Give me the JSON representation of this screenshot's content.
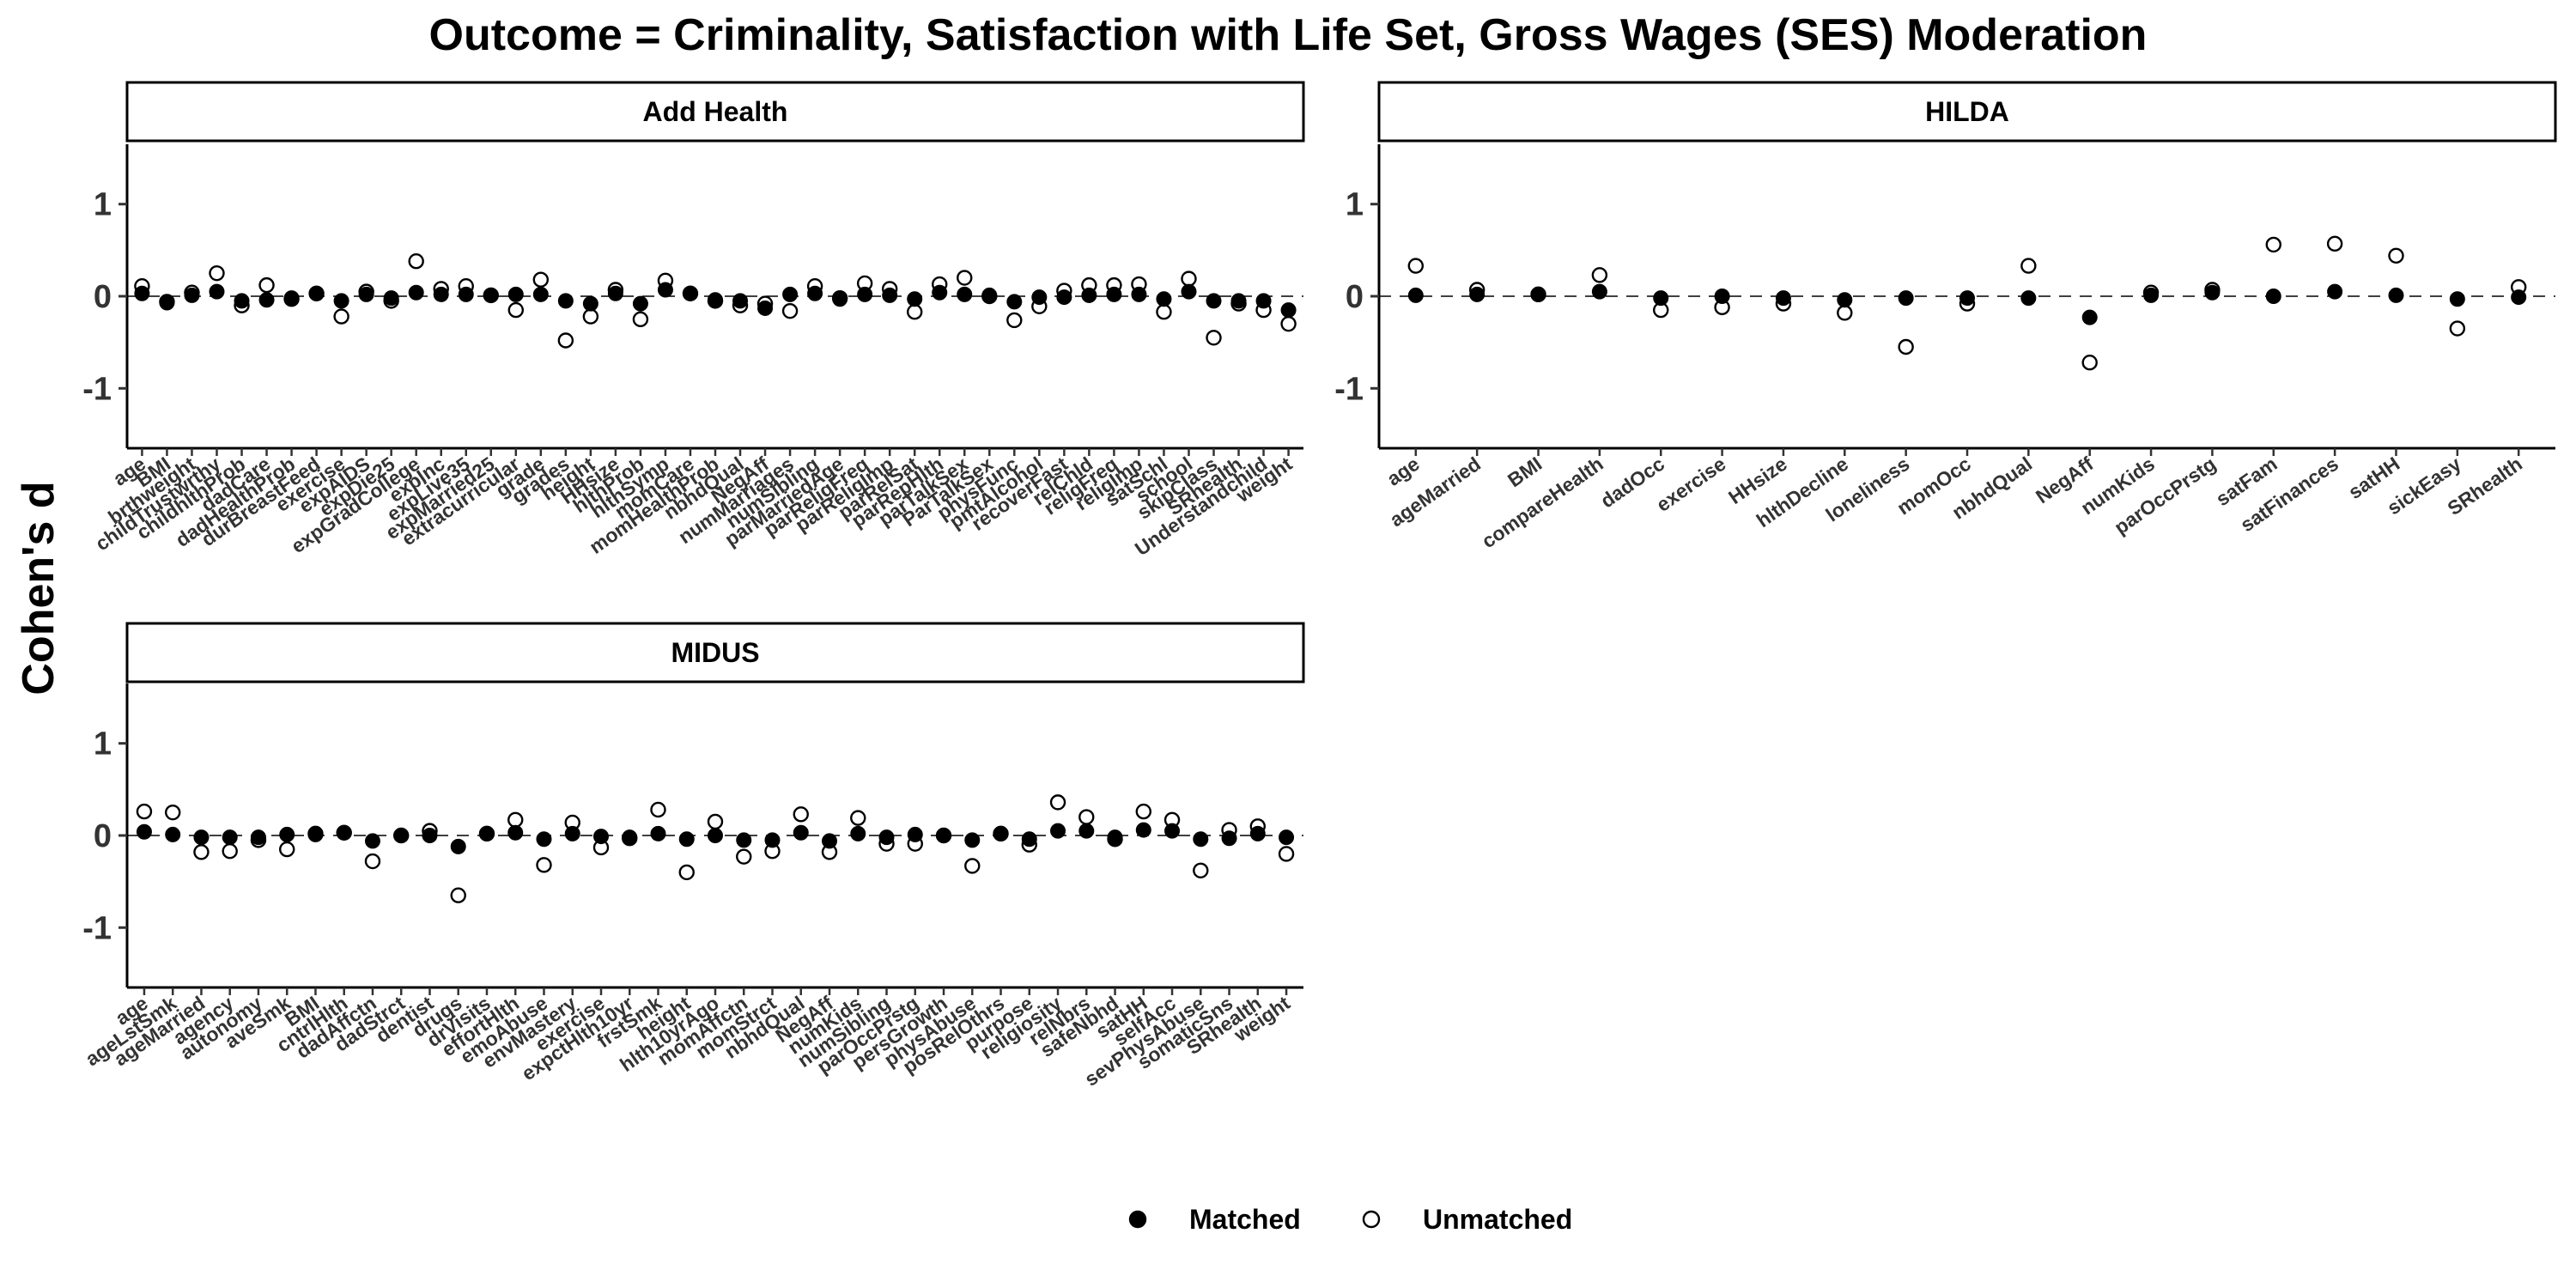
{
  "chart_data": {
    "type": "scatter",
    "title": "Outcome = Criminality, Satisfaction with Life Set, Gross Wages (SES) Moderation",
    "ylabel": "Cohen's d",
    "ylim": [
      -1.65,
      1.65
    ],
    "yticks": [
      -1,
      0,
      1
    ],
    "reference_line": 0,
    "grid": false,
    "legend_position": "bottom",
    "legend": [
      {
        "name": "Matched",
        "marker": "filled-circle"
      },
      {
        "name": "Unmatched",
        "marker": "open-circle"
      }
    ],
    "panels": [
      {
        "name": "Add Health",
        "categories": [
          "age",
          "BMI",
          "brthweight",
          "childTrustwrthy",
          "childhlthProb",
          "dadCare",
          "dadHealthProb",
          "durBreastFeed",
          "exercise",
          "expAIDS",
          "expDie25",
          "expGradCollege",
          "expInc",
          "expLive35",
          "expMarried25",
          "extracurricular",
          "grade",
          "grades",
          "height",
          "HHsize",
          "hlthProb",
          "hlthSymp",
          "momCare",
          "momHealthProb",
          "nbhdQual",
          "NegAff",
          "numMarriages",
          "numSibling",
          "parMarriedAge",
          "parReligFreq",
          "parReligImp",
          "parRelSat",
          "parRepHlth",
          "parTalkSex",
          "ParTalkSex",
          "physFunc",
          "pmtAlcohol",
          "recoverFast",
          "relChld",
          "religFreq",
          "religImp",
          "satSchl",
          "school",
          "skipClass",
          "SRhealth",
          "Understandchild",
          "weight"
        ],
        "matched": [
          0.03,
          -0.07,
          0.01,
          0.05,
          -0.05,
          -0.04,
          -0.02,
          0.03,
          -0.05,
          0.02,
          -0.02,
          0.04,
          0.02,
          0.02,
          0.01,
          0.02,
          0.02,
          -0.05,
          -0.08,
          0.03,
          -0.08,
          0.07,
          0.03,
          -0.04,
          -0.05,
          -0.13,
          0.02,
          0.03,
          -0.03,
          0.02,
          0.01,
          -0.03,
          0.04,
          0.02,
          0.01,
          -0.06,
          -0.01,
          -0.01,
          0.01,
          0.02,
          0.02,
          -0.03,
          0.05,
          -0.05,
          -0.05,
          -0.05,
          -0.15
        ],
        "unmatched": [
          0.11,
          -0.06,
          0.04,
          0.25,
          -0.1,
          0.12,
          -0.03,
          0.03,
          -0.22,
          0.05,
          -0.05,
          0.38,
          0.08,
          0.11,
          0.01,
          -0.15,
          0.18,
          -0.48,
          -0.22,
          0.07,
          -0.25,
          0.17,
          0.03,
          -0.05,
          -0.1,
          -0.08,
          -0.16,
          0.11,
          -0.02,
          0.14,
          0.08,
          -0.17,
          0.13,
          0.2,
          0.0,
          -0.26,
          -0.11,
          0.06,
          0.12,
          0.12,
          0.13,
          -0.17,
          0.19,
          -0.45,
          -0.08,
          -0.15,
          -0.3
        ]
      },
      {
        "name": "HILDA",
        "categories": [
          "age",
          "ageMarried",
          "BMI",
          "compareHealth",
          "dadOcc",
          "exercise",
          "HHsize",
          "hlthDecline",
          "loneliness",
          "momOcc",
          "nbhdQual",
          "NegAff",
          "numKids",
          "parOccPrstg",
          "satFam",
          "satFinances",
          "satHH",
          "sickEasy",
          "SRhealth"
        ],
        "matched": [
          0.01,
          0.02,
          0.02,
          0.05,
          -0.02,
          0.0,
          -0.02,
          -0.04,
          -0.02,
          -0.02,
          -0.02,
          -0.23,
          0.01,
          0.04,
          0.0,
          0.05,
          0.01,
          -0.03,
          -0.01
        ],
        "unmatched": [
          0.33,
          0.07,
          0.02,
          0.23,
          -0.15,
          -0.12,
          -0.08,
          -0.18,
          -0.55,
          -0.08,
          0.33,
          -0.72,
          0.04,
          0.07,
          0.56,
          0.57,
          0.44,
          -0.35,
          0.1
        ]
      },
      {
        "name": "MIDUS",
        "categories": [
          "age",
          "ageLstSmk",
          "ageMarried",
          "agency",
          "autonomy",
          "aveSmk",
          "BMI",
          "cntrlHlth",
          "dadAffctn",
          "dadStrct",
          "dentist",
          "drugs",
          "drVisits",
          "effortHlth",
          "emoAbuse",
          "envMastery",
          "exercise",
          "expctHlth10yr",
          "frstSmk",
          "height",
          "hlth10yrAgo",
          "momAffctn",
          "momStrct",
          "nbhdQual",
          "NegAff",
          "numKids",
          "numSibling",
          "parOccPrstg",
          "persGrowth",
          "physAbuse",
          "posRelOthrs",
          "purpose",
          "religiosity",
          "relNbrs",
          "safeNbhd",
          "satHH",
          "selfAcc",
          "sevPhysAbuse",
          "somaticSns",
          "SRhealth",
          "weight"
        ],
        "matched": [
          0.04,
          0.01,
          -0.02,
          -0.02,
          -0.02,
          0.01,
          0.01,
          0.03,
          -0.06,
          0.0,
          0.0,
          -0.12,
          0.02,
          0.03,
          -0.04,
          0.02,
          -0.01,
          -0.02,
          0.02,
          -0.04,
          0.0,
          -0.05,
          -0.05,
          0.03,
          -0.06,
          0.02,
          -0.02,
          0.01,
          0.0,
          -0.05,
          0.02,
          -0.04,
          0.05,
          0.05,
          -0.02,
          0.06,
          0.05,
          -0.04,
          -0.03,
          0.02,
          -0.02
        ],
        "unmatched": [
          0.26,
          0.25,
          -0.18,
          -0.17,
          -0.05,
          -0.15,
          0.02,
          0.03,
          -0.28,
          0.0,
          0.05,
          -0.65,
          0.02,
          0.17,
          -0.32,
          0.14,
          -0.13,
          -0.03,
          0.28,
          -0.4,
          0.15,
          -0.23,
          -0.17,
          0.23,
          -0.18,
          0.19,
          -0.09,
          -0.09,
          0.0,
          -0.33,
          0.02,
          -0.1,
          0.36,
          0.2,
          -0.04,
          0.26,
          0.17,
          -0.38,
          0.06,
          0.1,
          -0.2
        ]
      }
    ]
  }
}
